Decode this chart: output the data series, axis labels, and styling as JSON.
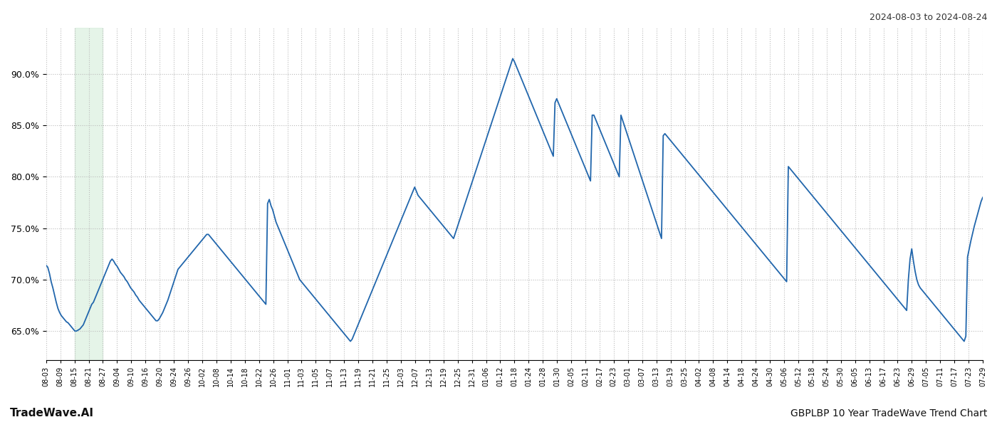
{
  "title_right": "2024-08-03 to 2024-08-24",
  "title_bottom_left": "TradeWave.AI",
  "title_bottom_right": "GBPLBP 10 Year TradeWave Trend Chart",
  "line_color": "#2166ac",
  "line_width": 1.3,
  "shade_color": "#d4edda",
  "shade_alpha": 0.6,
  "background_color": "#ffffff",
  "grid_color": "#bbbbbb",
  "ylim_low": 0.622,
  "ylim_high": 0.945,
  "yticks": [
    0.65,
    0.7,
    0.75,
    0.8,
    0.85,
    0.9
  ],
  "ytick_labels": [
    "65.0%",
    "70.0%",
    "75.0%",
    "80.0%",
    "85.0%",
    "90.0%"
  ],
  "x_labels": [
    "08-03",
    "08-09",
    "08-15",
    "08-21",
    "08-27",
    "09-04",
    "09-10",
    "09-16",
    "09-20",
    "09-24",
    "09-26",
    "10-02",
    "10-08",
    "10-14",
    "10-18",
    "10-22",
    "10-26",
    "11-01",
    "11-03",
    "11-05",
    "11-07",
    "11-13",
    "11-19",
    "11-21",
    "11-25",
    "12-03",
    "12-07",
    "12-13",
    "12-19",
    "12-25",
    "12-31",
    "01-06",
    "01-12",
    "01-18",
    "01-24",
    "01-28",
    "01-30",
    "02-05",
    "02-11",
    "02-17",
    "02-23",
    "03-01",
    "03-07",
    "03-13",
    "03-19",
    "03-25",
    "04-02",
    "04-08",
    "04-14",
    "04-18",
    "04-24",
    "04-30",
    "05-06",
    "05-12",
    "05-18",
    "05-24",
    "05-30",
    "06-05",
    "06-13",
    "06-17",
    "06-23",
    "06-29",
    "07-05",
    "07-11",
    "07-17",
    "07-23",
    "07-29"
  ],
  "shade_x_start_label": "08-15",
  "shade_x_end_label": "08-27",
  "values": [
    0.714,
    0.712,
    0.706,
    0.698,
    0.692,
    0.685,
    0.678,
    0.672,
    0.668,
    0.665,
    0.663,
    0.661,
    0.659,
    0.658,
    0.656,
    0.654,
    0.652,
    0.65,
    0.65,
    0.651,
    0.652,
    0.654,
    0.656,
    0.66,
    0.664,
    0.668,
    0.672,
    0.676,
    0.678,
    0.682,
    0.686,
    0.69,
    0.694,
    0.698,
    0.702,
    0.706,
    0.71,
    0.714,
    0.718,
    0.72,
    0.718,
    0.715,
    0.713,
    0.71,
    0.707,
    0.705,
    0.703,
    0.7,
    0.698,
    0.695,
    0.692,
    0.69,
    0.688,
    0.685,
    0.683,
    0.68,
    0.678,
    0.676,
    0.674,
    0.672,
    0.67,
    0.668,
    0.666,
    0.664,
    0.662,
    0.66,
    0.66,
    0.662,
    0.665,
    0.668,
    0.672,
    0.676,
    0.68,
    0.685,
    0.69,
    0.695,
    0.7,
    0.705,
    0.71,
    0.712,
    0.714,
    0.716,
    0.718,
    0.72,
    0.722,
    0.724,
    0.726,
    0.728,
    0.73,
    0.732,
    0.734,
    0.736,
    0.738,
    0.74,
    0.742,
    0.744,
    0.744,
    0.742,
    0.74,
    0.738,
    0.736,
    0.734,
    0.732,
    0.73,
    0.728,
    0.726,
    0.724,
    0.722,
    0.72,
    0.718,
    0.716,
    0.714,
    0.712,
    0.71,
    0.708,
    0.706,
    0.704,
    0.702,
    0.7,
    0.698,
    0.696,
    0.694,
    0.692,
    0.69,
    0.688,
    0.686,
    0.684,
    0.682,
    0.68,
    0.678,
    0.676,
    0.774,
    0.778,
    0.772,
    0.768,
    0.762,
    0.756,
    0.752,
    0.748,
    0.744,
    0.74,
    0.736,
    0.732,
    0.728,
    0.724,
    0.72,
    0.716,
    0.712,
    0.708,
    0.704,
    0.7,
    0.698,
    0.696,
    0.694,
    0.692,
    0.69,
    0.688,
    0.686,
    0.684,
    0.682,
    0.68,
    0.678,
    0.676,
    0.674,
    0.672,
    0.67,
    0.668,
    0.666,
    0.664,
    0.662,
    0.66,
    0.658,
    0.656,
    0.654,
    0.652,
    0.65,
    0.648,
    0.646,
    0.644,
    0.642,
    0.64,
    0.642,
    0.646,
    0.65,
    0.654,
    0.658,
    0.662,
    0.666,
    0.67,
    0.674,
    0.678,
    0.682,
    0.686,
    0.69,
    0.694,
    0.698,
    0.702,
    0.706,
    0.71,
    0.714,
    0.718,
    0.722,
    0.726,
    0.73,
    0.734,
    0.738,
    0.742,
    0.746,
    0.75,
    0.754,
    0.758,
    0.762,
    0.766,
    0.77,
    0.774,
    0.778,
    0.782,
    0.786,
    0.79,
    0.786,
    0.782,
    0.78,
    0.778,
    0.776,
    0.774,
    0.772,
    0.77,
    0.768,
    0.766,
    0.764,
    0.762,
    0.76,
    0.758,
    0.756,
    0.754,
    0.752,
    0.75,
    0.748,
    0.746,
    0.744,
    0.742,
    0.74,
    0.745,
    0.75,
    0.755,
    0.76,
    0.765,
    0.77,
    0.775,
    0.78,
    0.785,
    0.79,
    0.795,
    0.8,
    0.805,
    0.81,
    0.815,
    0.82,
    0.825,
    0.83,
    0.835,
    0.84,
    0.845,
    0.85,
    0.855,
    0.86,
    0.865,
    0.87,
    0.875,
    0.88,
    0.885,
    0.89,
    0.895,
    0.9,
    0.905,
    0.91,
    0.915,
    0.912,
    0.908,
    0.904,
    0.9,
    0.896,
    0.892,
    0.888,
    0.884,
    0.88,
    0.876,
    0.872,
    0.868,
    0.864,
    0.86,
    0.856,
    0.852,
    0.848,
    0.844,
    0.84,
    0.836,
    0.832,
    0.828,
    0.824,
    0.82,
    0.872,
    0.876,
    0.872,
    0.868,
    0.864,
    0.86,
    0.856,
    0.852,
    0.848,
    0.844,
    0.84,
    0.836,
    0.832,
    0.828,
    0.824,
    0.82,
    0.816,
    0.812,
    0.808,
    0.804,
    0.8,
    0.796,
    0.86,
    0.86,
    0.856,
    0.852,
    0.848,
    0.844,
    0.84,
    0.836,
    0.832,
    0.828,
    0.824,
    0.82,
    0.816,
    0.812,
    0.808,
    0.804,
    0.8,
    0.86,
    0.855,
    0.85,
    0.845,
    0.84,
    0.835,
    0.83,
    0.825,
    0.82,
    0.815,
    0.81,
    0.805,
    0.8,
    0.795,
    0.79,
    0.785,
    0.78,
    0.775,
    0.77,
    0.765,
    0.76,
    0.755,
    0.75,
    0.745,
    0.74,
    0.84,
    0.842,
    0.84,
    0.838,
    0.836,
    0.834,
    0.832,
    0.83,
    0.828,
    0.826,
    0.824,
    0.822,
    0.82,
    0.818,
    0.816,
    0.814,
    0.812,
    0.81,
    0.808,
    0.806,
    0.804,
    0.802,
    0.8,
    0.798,
    0.796,
    0.794,
    0.792,
    0.79,
    0.788,
    0.786,
    0.784,
    0.782,
    0.78,
    0.778,
    0.776,
    0.774,
    0.772,
    0.77,
    0.768,
    0.766,
    0.764,
    0.762,
    0.76,
    0.758,
    0.756,
    0.754,
    0.752,
    0.75,
    0.748,
    0.746,
    0.744,
    0.742,
    0.74,
    0.738,
    0.736,
    0.734,
    0.732,
    0.73,
    0.728,
    0.726,
    0.724,
    0.722,
    0.72,
    0.718,
    0.716,
    0.714,
    0.712,
    0.71,
    0.708,
    0.706,
    0.704,
    0.702,
    0.7,
    0.698,
    0.81,
    0.808,
    0.806,
    0.804,
    0.802,
    0.8,
    0.798,
    0.796,
    0.794,
    0.792,
    0.79,
    0.788,
    0.786,
    0.784,
    0.782,
    0.78,
    0.778,
    0.776,
    0.774,
    0.772,
    0.77,
    0.768,
    0.766,
    0.764,
    0.762,
    0.76,
    0.758,
    0.756,
    0.754,
    0.752,
    0.75,
    0.748,
    0.746,
    0.744,
    0.742,
    0.74,
    0.738,
    0.736,
    0.734,
    0.732,
    0.73,
    0.728,
    0.726,
    0.724,
    0.722,
    0.72,
    0.718,
    0.716,
    0.714,
    0.712,
    0.71,
    0.708,
    0.706,
    0.704,
    0.702,
    0.7,
    0.698,
    0.696,
    0.694,
    0.692,
    0.69,
    0.688,
    0.686,
    0.684,
    0.682,
    0.68,
    0.678,
    0.676,
    0.674,
    0.672,
    0.67,
    0.7,
    0.72,
    0.73,
    0.718,
    0.708,
    0.7,
    0.695,
    0.692,
    0.69,
    0.688,
    0.686,
    0.684,
    0.682,
    0.68,
    0.678,
    0.676,
    0.674,
    0.672,
    0.67,
    0.668,
    0.666,
    0.664,
    0.662,
    0.66,
    0.658,
    0.656,
    0.654,
    0.652,
    0.65,
    0.648,
    0.646,
    0.644,
    0.642,
    0.64,
    0.645,
    0.722,
    0.73,
    0.738,
    0.745,
    0.752,
    0.758,
    0.764,
    0.77,
    0.776,
    0.78
  ]
}
